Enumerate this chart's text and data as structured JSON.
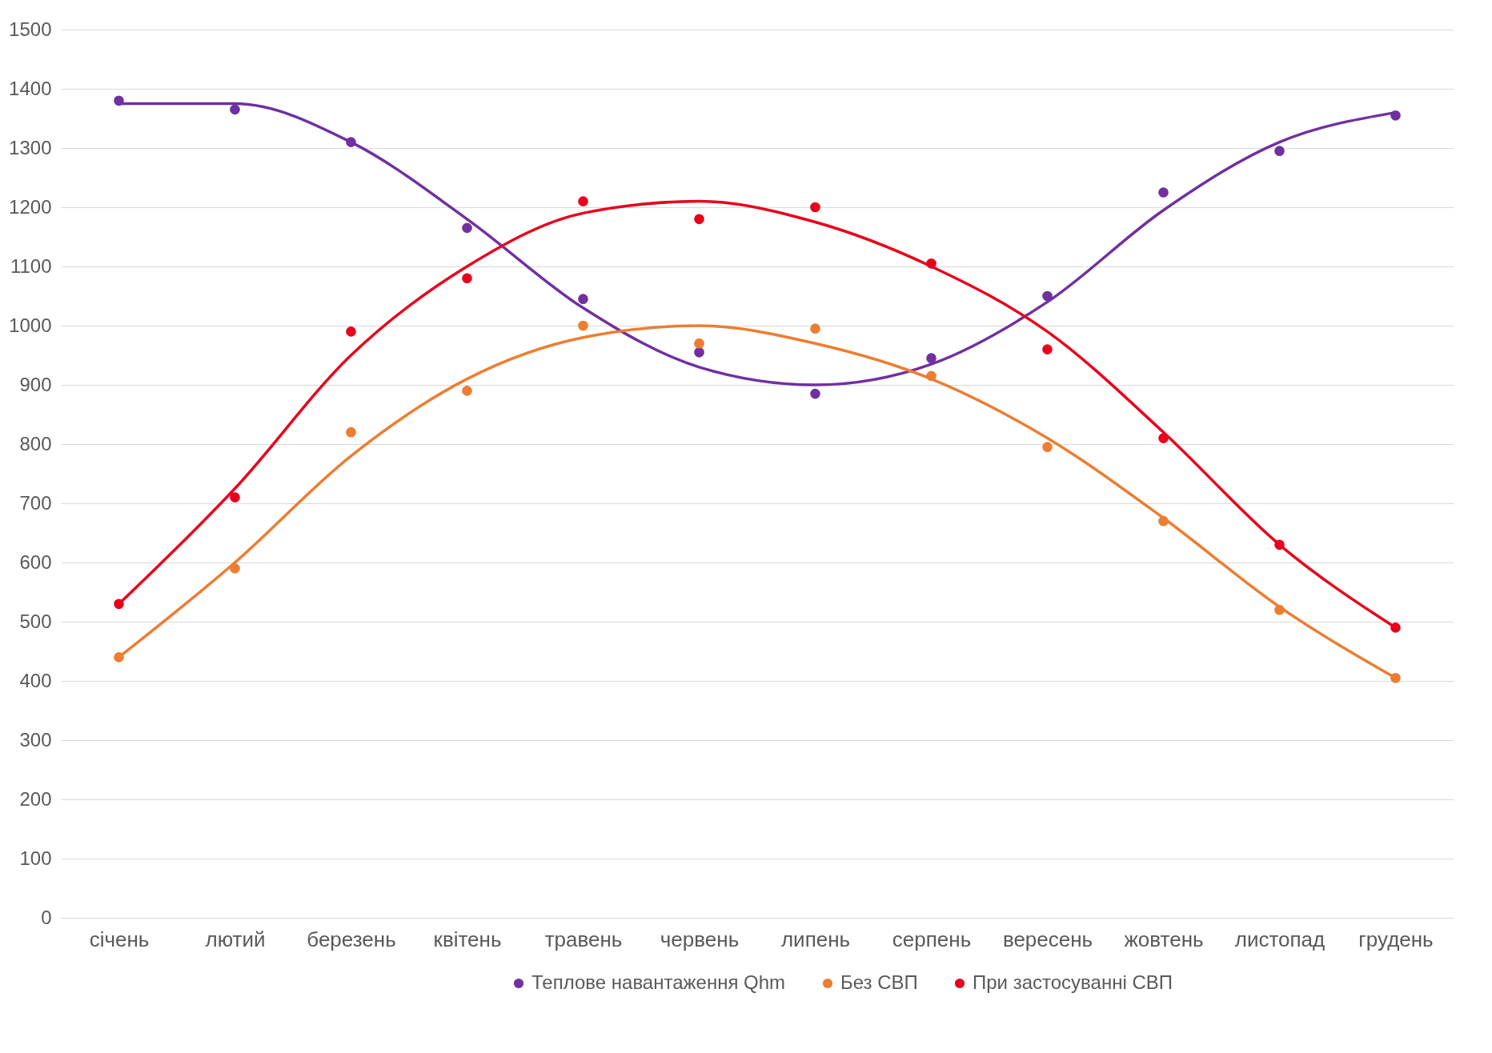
{
  "chart_data": {
    "type": "scatter",
    "categories": [
      "січень",
      "лютий",
      "березень",
      "квітень",
      "травень",
      "червень",
      "липень",
      "серпень",
      "вересень",
      "жовтень",
      "листопад",
      "грудень"
    ],
    "series": [
      {
        "type": "line",
        "marker": "none",
        "color": "#7030a0",
        "values": [
          1375,
          1375,
          1310,
          1180,
          1030,
          930,
          900,
          935,
          1040,
          1195,
          1310,
          1360
        ]
      },
      {
        "type": "line",
        "marker": "none",
        "color": "#ed7d31",
        "values": [
          440,
          600,
          780,
          910,
          980,
          1000,
          970,
          910,
          810,
          675,
          525,
          405
        ]
      },
      {
        "type": "line",
        "marker": "none",
        "color": "#e8001c",
        "values": [
          530,
          725,
          950,
          1100,
          1190,
          1210,
          1175,
          1100,
          990,
          820,
          630,
          490
        ]
      },
      {
        "name": "Теплове навантаження Qhm",
        "color": "#7030a0",
        "values": [
          1380,
          1365,
          1310,
          1165,
          1045,
          955,
          885,
          945,
          1050,
          1225,
          1295,
          1355
        ]
      },
      {
        "name": "Без СВП",
        "color": "#ed7d31",
        "values": [
          440,
          590,
          820,
          890,
          1000,
          970,
          995,
          915,
          795,
          670,
          520,
          405
        ]
      },
      {
        "name": "При застосуванні СВП",
        "color": "#e8001c",
        "values": [
          530,
          710,
          990,
          1080,
          1210,
          1180,
          1200,
          1105,
          960,
          810,
          630,
          490
        ]
      }
    ],
    "ylim": [
      0,
      1500
    ],
    "yticks": [
      0,
      100,
      200,
      300,
      400,
      500,
      600,
      700,
      800,
      900,
      1000,
      1100,
      1200,
      1300,
      1400,
      1500
    ],
    "grid": "y",
    "legend": "bottom",
    "marker": "circle",
    "line_style": "solid"
  }
}
